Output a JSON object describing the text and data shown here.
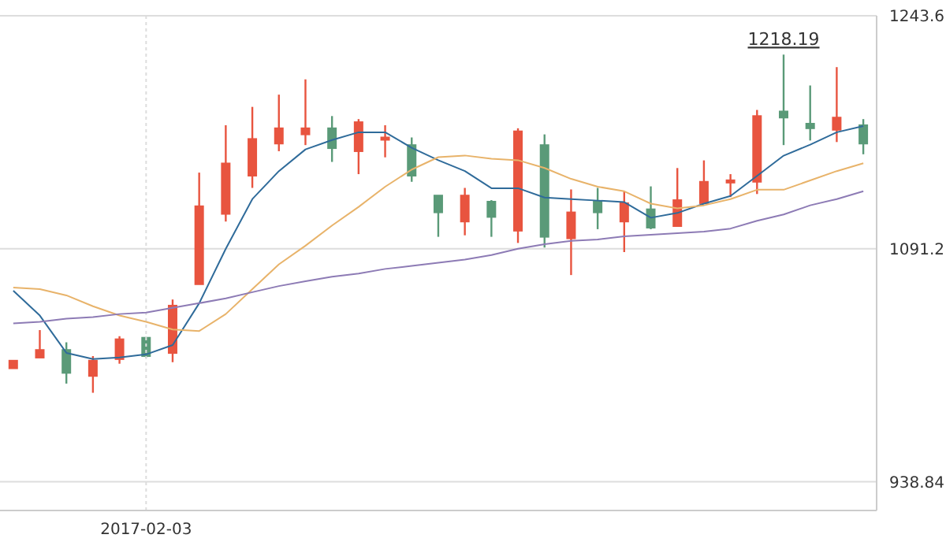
{
  "chart_data": {
    "type": "candlestick",
    "categories": [
      null,
      null,
      null,
      null,
      null,
      "2017-02-03",
      null,
      null,
      null,
      null,
      null,
      null,
      null,
      null,
      null,
      null,
      null,
      null,
      null,
      null,
      null,
      null,
      null,
      null,
      null,
      null,
      null,
      null,
      null,
      null,
      null,
      null,
      null
    ],
    "ohlc": [
      [
        1013,
        1018,
        1013,
        1018
      ],
      [
        1020,
        1038,
        1020,
        1025
      ],
      [
        1025,
        1030,
        1003,
        1010
      ],
      [
        1008,
        1021,
        997,
        1018
      ],
      [
        1019,
        1034,
        1016,
        1032
      ],
      [
        1033,
        1033,
        1020,
        1021
      ],
      [
        1023,
        1058,
        1017,
        1054
      ],
      [
        1068,
        1141,
        1068,
        1119
      ],
      [
        1114,
        1172,
        1109,
        1147
      ],
      [
        1139,
        1184,
        1131,
        1163
      ],
      [
        1160,
        1192,
        1155,
        1170
      ],
      [
        1166,
        1202,
        1159,
        1170
      ],
      [
        1170,
        1178,
        1148,
        1157
      ],
      [
        1155,
        1176,
        1140,
        1174
      ],
      [
        1163,
        1172,
        1151,
        1164
      ],
      [
        1159,
        1164,
        1135,
        1139
      ],
      [
        1126,
        1126,
        1099,
        1115
      ],
      [
        1109,
        1131,
        1100,
        1126
      ],
      [
        1122,
        1123,
        1099,
        1112
      ],
      [
        1103,
        1170,
        1095,
        1168
      ],
      [
        1159,
        1166,
        1092,
        1099
      ],
      [
        1098,
        1130,
        1074,
        1115
      ],
      [
        1122,
        1131,
        1104,
        1115
      ],
      [
        1109,
        1129,
        1089,
        1121
      ],
      [
        1117,
        1132,
        1104,
        1105
      ],
      [
        1106,
        1144,
        1106,
        1123
      ],
      [
        1121,
        1149,
        1121,
        1135
      ],
      [
        1135,
        1140,
        1125,
        1136
      ],
      [
        1135,
        1182,
        1127,
        1178
      ],
      [
        1181,
        1218.19,
        1159,
        1177
      ],
      [
        1173,
        1198,
        1162,
        1170
      ],
      [
        1169,
        1210,
        1161,
        1177
      ],
      [
        1172,
        1176,
        1153,
        1160
      ]
    ],
    "colors": [
      "#e8543f",
      "#e8543f",
      "#5a9a78",
      "#e8543f",
      "#e8543f",
      "#5a9a78",
      "#e8543f",
      "#e8543f",
      "#e8543f",
      "#e8543f",
      "#e8543f",
      "#e8543f",
      "#5a9a78",
      "#e8543f",
      "#e8543f",
      "#5a9a78",
      "#5a9a78",
      "#e8543f",
      "#5a9a78",
      "#e8543f",
      "#5a9a78",
      "#e8543f",
      "#5a9a78",
      "#e8543f",
      "#5a9a78",
      "#e8543f",
      "#e8543f",
      "#e8543f",
      "#e8543f",
      "#5a9a78",
      "#5a9a78",
      "#e8543f",
      "#5a9a78"
    ],
    "series": [
      {
        "type": "line",
        "color": "#2f6b9a",
        "values": [
          1063.8,
          1047.5,
          1023.1,
          1019.1,
          1020.1,
          1022.1,
          1028.2,
          1055.6,
          1091.2,
          1123.7,
          1142.0,
          1156.2,
          1162.3,
          1167.4,
          1167.4,
          1157.2,
          1149.1,
          1142.0,
          1130.8,
          1130.8,
          1124.7,
          1123.7,
          1122.7,
          1121.7,
          1111.5,
          1114.6,
          1120.7,
          1125.7,
          1138.9,
          1152.1,
          1159.3,
          1167.4,
          1171.5
        ]
      },
      {
        "type": "line",
        "color": "#e8b36a",
        "values": [
          1065.8,
          1064.8,
          1060.7,
          1053.6,
          1047.5,
          1043.4,
          1038.4,
          1037.4,
          1048.5,
          1064.8,
          1081.0,
          1093.2,
          1106.4,
          1118.6,
          1131.8,
          1143.0,
          1151.1,
          1152.2,
          1150.1,
          1149.1,
          1144.0,
          1136.9,
          1131.8,
          1128.8,
          1120.7,
          1117.6,
          1119.6,
          1123.7,
          1129.8,
          1129.8,
          1135.9,
          1142.0,
          1147.1
        ]
      },
      {
        "type": "line",
        "color": "#8d7bb5",
        "values": [
          1042.4,
          1043.4,
          1045.5,
          1046.5,
          1048.5,
          1049.5,
          1052.6,
          1055.6,
          1058.7,
          1062.8,
          1066.8,
          1069.9,
          1072.9,
          1075.0,
          1078.0,
          1080.0,
          1082.1,
          1084.1,
          1087.1,
          1091.2,
          1094.2,
          1096.3,
          1097.3,
          1099.3,
          1100.3,
          1101.4,
          1102.4,
          1104.4,
          1109.5,
          1113.6,
          1119.6,
          1123.7,
          1128.8
        ]
      }
    ],
    "ylim": [
      920,
      1243.6
    ],
    "yticks": [
      938.84,
      1091.2,
      1243.6
    ],
    "grid": true,
    "marker": "none",
    "line_style": "solid",
    "annotations": [
      {
        "text": "1218.19",
        "y": 1218.19
      }
    ]
  }
}
